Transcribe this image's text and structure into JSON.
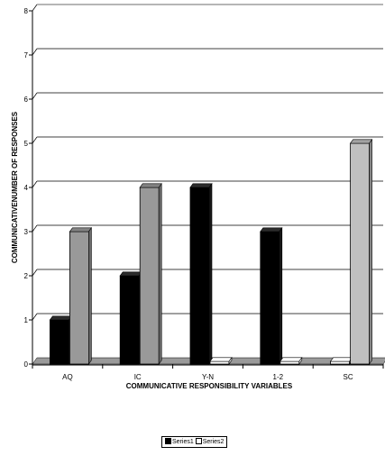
{
  "chart_data": {
    "type": "bar",
    "categories": [
      "AQ",
      "IC",
      "Y-N",
      "1-2",
      "SC"
    ],
    "series": [
      {
        "name": "Series1",
        "values": [
          1,
          2,
          4,
          3,
          0
        ],
        "color": "#000000"
      },
      {
        "name": "Series2",
        "values": [
          3,
          4,
          0,
          0,
          5
        ],
        "color": "#999999"
      }
    ],
    "series2_highlight_color": "#c0c0c0",
    "xlabel": "COMMUNICATIVE RESPONSIBILITY VARIABLES",
    "ylabel": "COMMUNICATIVENUMBER OF RESPONSES",
    "ylim": [
      0,
      8
    ],
    "yticks": [
      0,
      1,
      2,
      3,
      4,
      5,
      6,
      7,
      8
    ],
    "grid": true,
    "legend": "bottom-center"
  }
}
